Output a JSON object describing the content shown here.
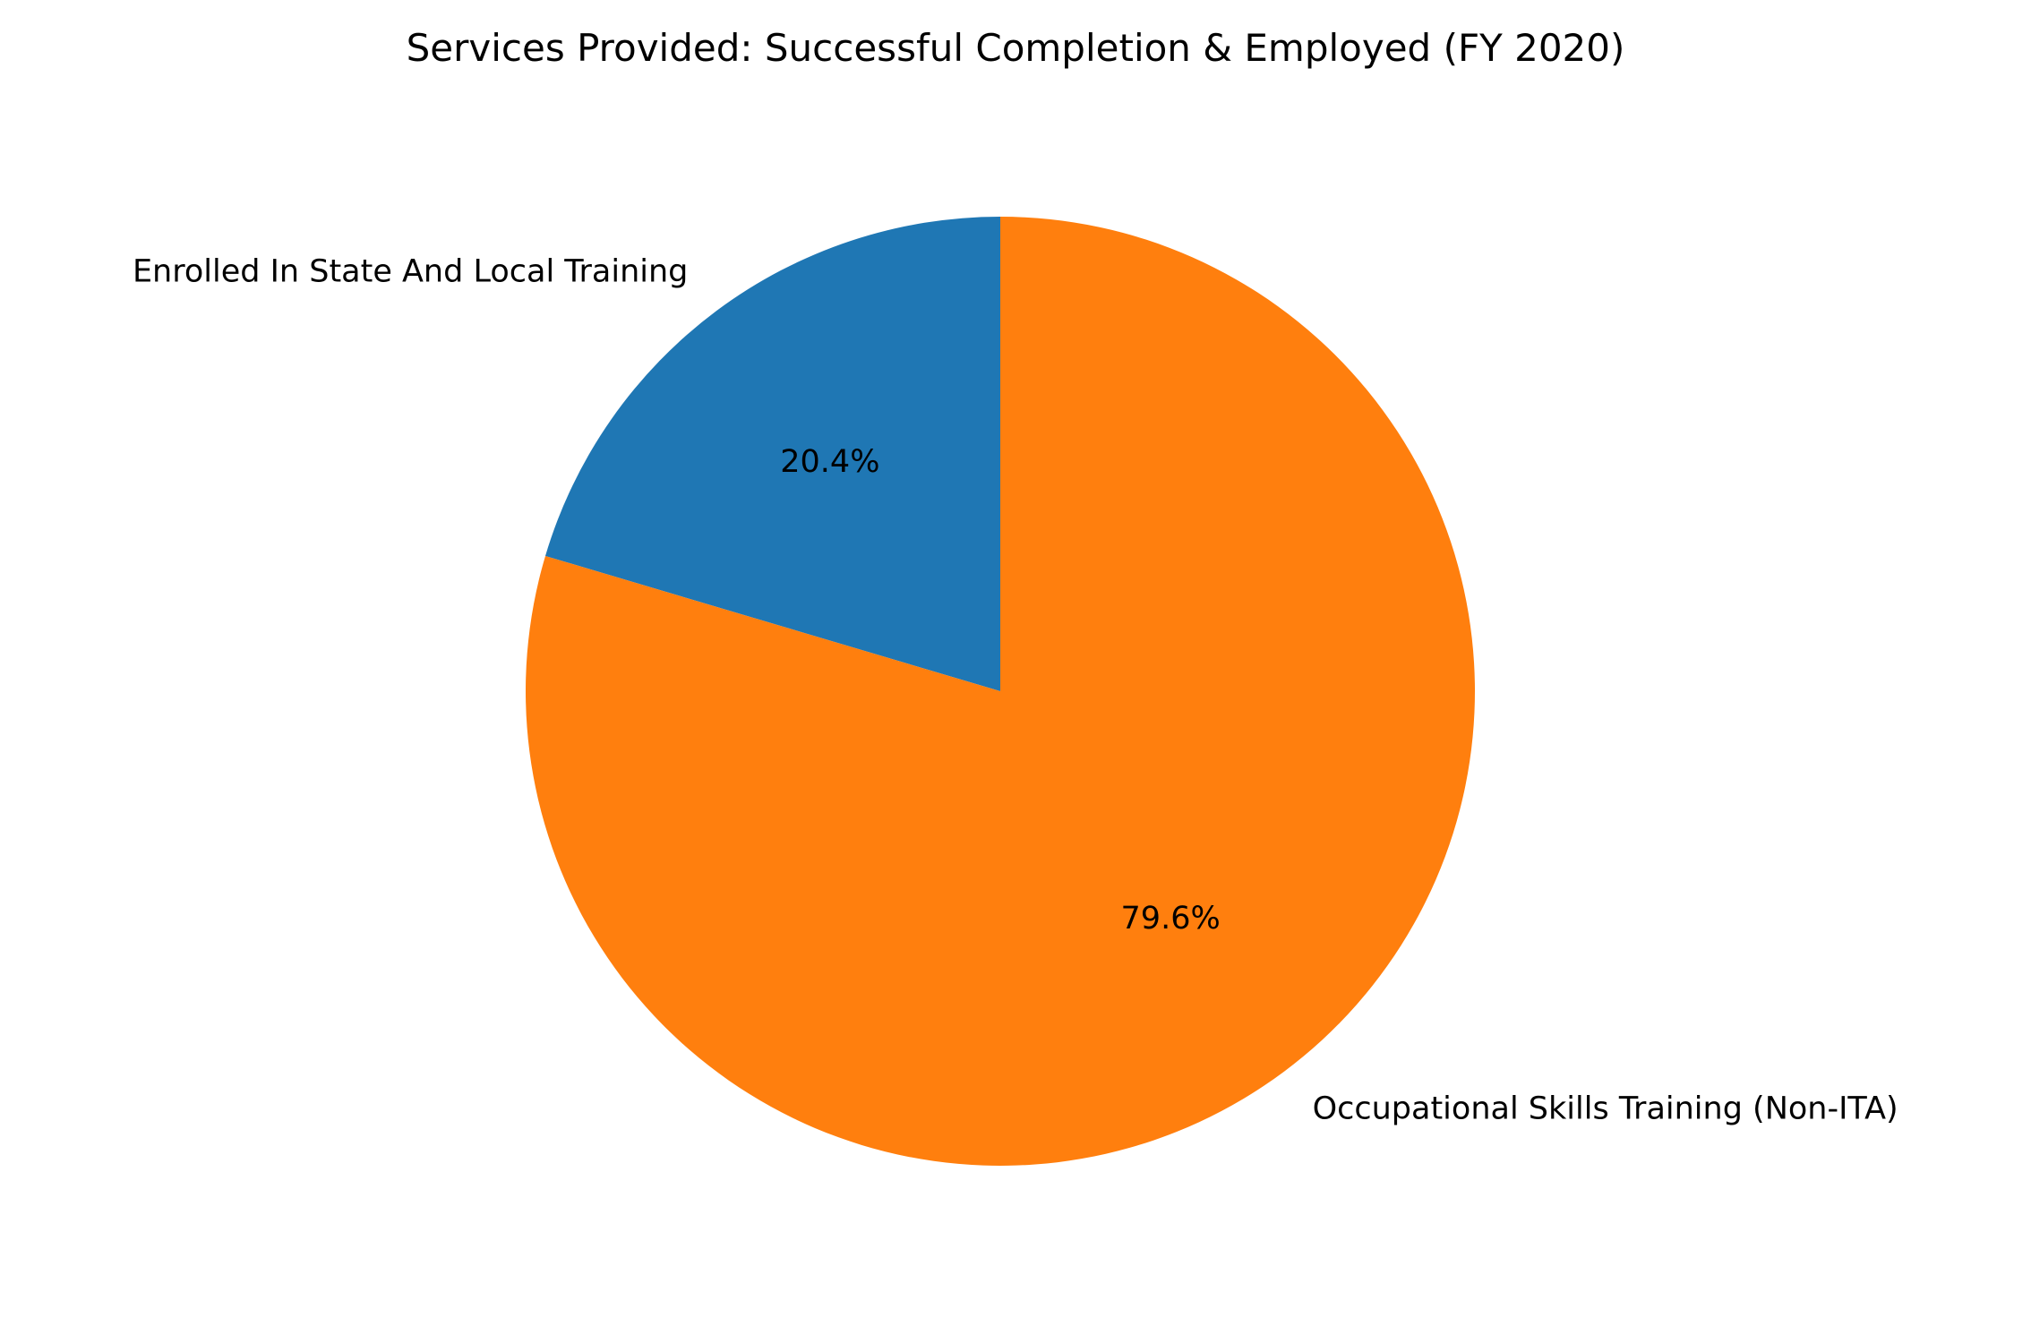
{
  "chart_data": {
    "type": "pie",
    "title": "Services Provided: Successful Completion & Employed (FY 2020)",
    "start_angle_deg": 90,
    "direction": "counterclockwise",
    "slices": [
      {
        "label": "Enrolled In State And Local Training",
        "percent": 20.4,
        "percent_label": "20.4%",
        "color": "#1f77b4"
      },
      {
        "label": "Occupational Skills Training (Non-ITA)",
        "percent": 79.6,
        "percent_label": "79.6%",
        "color": "#ff7f0e"
      }
    ]
  }
}
